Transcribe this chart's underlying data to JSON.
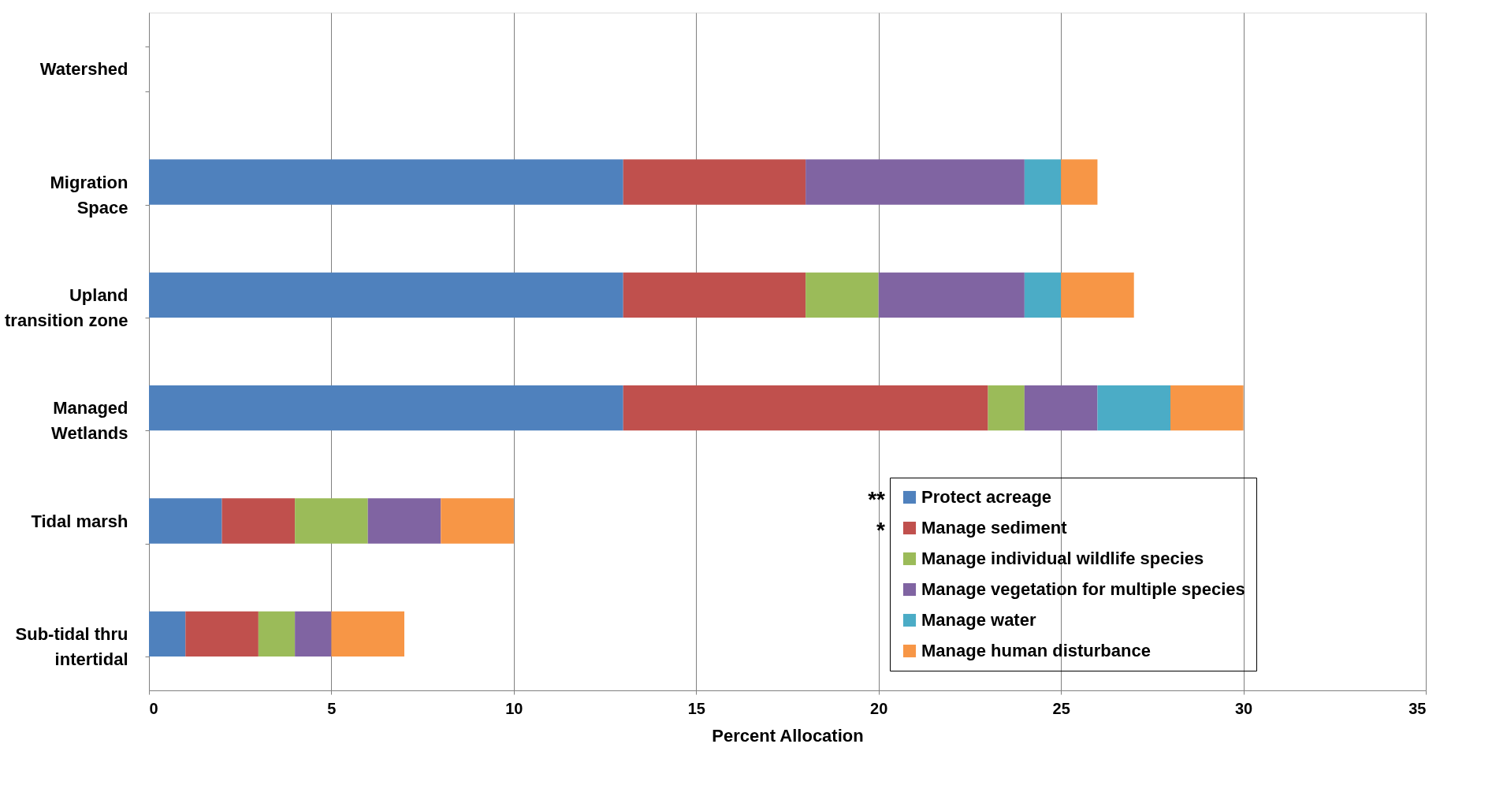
{
  "chart_data": {
    "type": "bar",
    "orientation": "horizontal",
    "stacked": true,
    "xlabel": "Percent Allocation",
    "categories": [
      "Watershed",
      "Migration Space",
      "Upland transition zone",
      "Managed Wetlands",
      "Tidal marsh",
      "Sub-tidal thru intertidal"
    ],
    "series": [
      {
        "name": "Protect acreage",
        "color": "#4f81bd",
        "values": [
          null,
          13,
          13,
          13,
          2,
          1
        ]
      },
      {
        "name": "Manage sediment",
        "color": "#c0504d",
        "values": [
          null,
          5,
          5,
          10,
          2,
          2
        ]
      },
      {
        "name": "Manage individual wildlife species",
        "color": "#9bbb59",
        "values": [
          null,
          null,
          2,
          1,
          2,
          1
        ]
      },
      {
        "name": "Manage vegetation for multiple species",
        "color": "#8064a2",
        "values": [
          null,
          6,
          4,
          2,
          2,
          1
        ]
      },
      {
        "name": "Manage water",
        "color": "#4bacc6",
        "values": [
          null,
          1,
          1,
          2,
          null,
          null
        ]
      },
      {
        "name": "Manage human disturbance",
        "color": "#f79646",
        "values": [
          null,
          1,
          2,
          2,
          2,
          2
        ]
      }
    ],
    "xlim": [
      0,
      35
    ],
    "xticks": [
      0,
      5,
      10,
      15,
      20,
      25,
      30,
      35
    ],
    "grid": "x",
    "legend": "bottom right",
    "annotations": [
      "**",
      "*"
    ]
  }
}
